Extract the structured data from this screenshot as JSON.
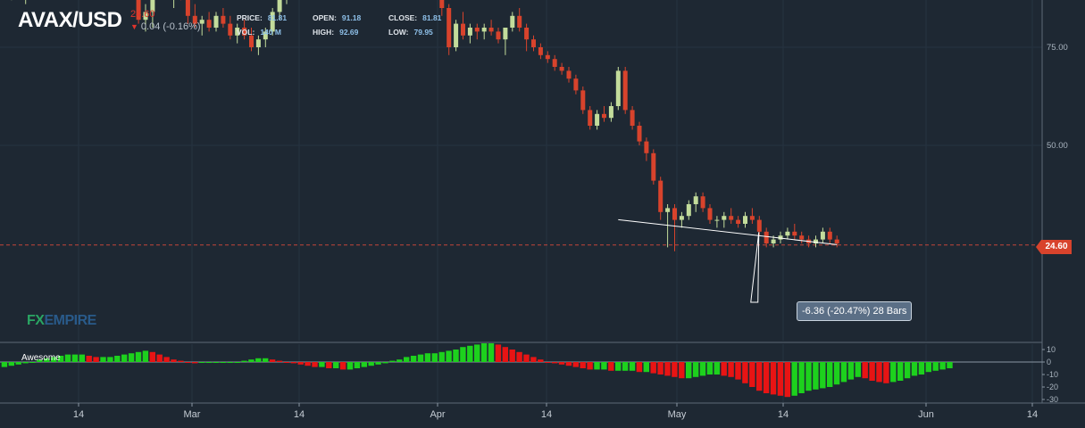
{
  "header": {
    "symbol": "AVAX/USD",
    "last_price": "24.60",
    "change": "0.04 (-0.16%)",
    "stats": [
      {
        "label": "PRICE:",
        "value": "81.81"
      },
      {
        "label": "OPEN:",
        "value": "91.18"
      },
      {
        "label": "CLOSE:",
        "value": "81.81"
      },
      {
        "label": "VOL:",
        "value": "140 M"
      },
      {
        "label": "HIGH:",
        "value": "92.69"
      },
      {
        "label": "LOW:",
        "value": "79.95"
      }
    ]
  },
  "logo": {
    "fx": "FX",
    "empire": "EMPIRE"
  },
  "indicator": {
    "name": "Awesome"
  },
  "price_tag": "24.60",
  "annotation": "-6.36 (-20.47%) 28 Bars",
  "colors": {
    "background": "#1e2833",
    "up": "#c3dc9b",
    "down": "#d8432c",
    "ao_up": "#1dd11d",
    "ao_down": "#e81414"
  },
  "chart_data": [
    {
      "type": "candlestick",
      "y_ticks": [
        "75.00",
        "50.00"
      ],
      "x_ticks": [
        "14",
        "Mar",
        "14",
        "Apr",
        "14",
        "May",
        "14",
        "Jun",
        "14"
      ],
      "current_price": 24.6,
      "candles_ohlc": [
        [
          93,
          96,
          88,
          90
        ],
        [
          90,
          91.5,
          87,
          91
        ],
        [
          91,
          94,
          88,
          89
        ],
        [
          89,
          92,
          86,
          91
        ],
        [
          91,
          94,
          89,
          93
        ],
        [
          93,
          95,
          90,
          92
        ],
        [
          92,
          97,
          91,
          96
        ],
        [
          96,
          99,
          94,
          95
        ],
        [
          95,
          98,
          92,
          97
        ],
        [
          97,
          101,
          95,
          100
        ],
        [
          100,
          102,
          96,
          97
        ],
        [
          97,
          99,
          93,
          98
        ],
        [
          98,
          103,
          97,
          102
        ],
        [
          102,
          104,
          98,
          99
        ],
        [
          99,
          102,
          96,
          101
        ],
        [
          101,
          104,
          98,
          103
        ],
        [
          103,
          106,
          100,
          104
        ],
        [
          104,
          105,
          97,
          98
        ],
        [
          98,
          100,
          89,
          90
        ],
        [
          90,
          91,
          81,
          82
        ],
        [
          82,
          86,
          79,
          84
        ],
        [
          84,
          91,
          80,
          89
        ],
        [
          89,
          96,
          88,
          95
        ],
        [
          95,
          97,
          89,
          90
        ],
        [
          90,
          93,
          85,
          92
        ],
        [
          92,
          95,
          87,
          88
        ],
        [
          88,
          89,
          81,
          83
        ],
        [
          83,
          86,
          80,
          81
        ],
        [
          81,
          83,
          78,
          82
        ],
        [
          82,
          84,
          79,
          80
        ],
        [
          80,
          84,
          79,
          83
        ],
        [
          83,
          85,
          80,
          81
        ],
        [
          81,
          83,
          77,
          78
        ],
        [
          78,
          81,
          76,
          80
        ],
        [
          80,
          82,
          77,
          78
        ],
        [
          78,
          80,
          74,
          75
        ],
        [
          75,
          78,
          73,
          77
        ],
        [
          77,
          80,
          75,
          79
        ],
        [
          79,
          85,
          78,
          84
        ],
        [
          84,
          90,
          82,
          88
        ],
        [
          88,
          94,
          86,
          92
        ],
        [
          92,
          97,
          90,
          95
        ],
        [
          95,
          98,
          92,
          96
        ],
        [
          96,
          99,
          93,
          94
        ],
        [
          94,
          97,
          91,
          92
        ],
        [
          92,
          95,
          89,
          93
        ],
        [
          93,
          96,
          90,
          94
        ],
        [
          94,
          97,
          92,
          96
        ],
        [
          96,
          99,
          94,
          97
        ],
        [
          97,
          101,
          95,
          100
        ],
        [
          100,
          104,
          98,
          102
        ],
        [
          102,
          106,
          99,
          104
        ],
        [
          104,
          108,
          100,
          105
        ],
        [
          105,
          110,
          101,
          106
        ],
        [
          106,
          112,
          102,
          108
        ],
        [
          108,
          114,
          104,
          110
        ],
        [
          110,
          115,
          106,
          112
        ],
        [
          112,
          114,
          106,
          107
        ],
        [
          107,
          109,
          101,
          102
        ],
        [
          102,
          104,
          96,
          97
        ],
        [
          97,
          99,
          91,
          93
        ],
        [
          93,
          94,
          88,
          92
        ],
        [
          92,
          93,
          83,
          85
        ],
        [
          85,
          86,
          73,
          75
        ],
        [
          75,
          82,
          74,
          81
        ],
        [
          81,
          84,
          77,
          78
        ],
        [
          78,
          81,
          76,
          80
        ],
        [
          80,
          81,
          77,
          79
        ],
        [
          79,
          81,
          77,
          80
        ],
        [
          80,
          82,
          78,
          79
        ],
        [
          79,
          80,
          76,
          77
        ],
        [
          77,
          79,
          73,
          80
        ],
        [
          80,
          84,
          79,
          83
        ],
        [
          83,
          85,
          79,
          80
        ],
        [
          80,
          81,
          74,
          77
        ],
        [
          77,
          78,
          74,
          75
        ],
        [
          75,
          76,
          72,
          73
        ],
        [
          73,
          74,
          71,
          72
        ],
        [
          72,
          73,
          69,
          70
        ],
        [
          70,
          71,
          68,
          69
        ],
        [
          69,
          70,
          66,
          67
        ],
        [
          67,
          68,
          63,
          64
        ],
        [
          64,
          65,
          58,
          59
        ],
        [
          59,
          60,
          54,
          55
        ],
        [
          55,
          59,
          54,
          58
        ],
        [
          58,
          60,
          56,
          57
        ],
        [
          57,
          61,
          56,
          60
        ],
        [
          60,
          70,
          59,
          69
        ],
        [
          69,
          70,
          58,
          59
        ],
        [
          59,
          60,
          54,
          55
        ],
        [
          55,
          56,
          50,
          51
        ],
        [
          51,
          52,
          46,
          48
        ],
        [
          48,
          49,
          40,
          41
        ],
        [
          41,
          42,
          31,
          33
        ],
        [
          33,
          35,
          24,
          34
        ],
        [
          34,
          35,
          23,
          31
        ],
        [
          31,
          33,
          29,
          32
        ],
        [
          32,
          36,
          31,
          35
        ],
        [
          35,
          38,
          33,
          37
        ],
        [
          37,
          38,
          33,
          34
        ],
        [
          34,
          35,
          30,
          31
        ],
        [
          31,
          32,
          29,
          31
        ],
        [
          31,
          33,
          29,
          32
        ],
        [
          32,
          34,
          30,
          31
        ],
        [
          31,
          32,
          29,
          30
        ],
        [
          30,
          33,
          29,
          32
        ],
        [
          32,
          34,
          30,
          31
        ],
        [
          31,
          32,
          27,
          28
        ],
        [
          28,
          29,
          24,
          25
        ],
        [
          25,
          27,
          24,
          26
        ],
        [
          26,
          28,
          25,
          27
        ],
        [
          27,
          29,
          26,
          28
        ],
        [
          28,
          30,
          26,
          27
        ],
        [
          27,
          28,
          25,
          26
        ],
        [
          26,
          27,
          24,
          25
        ],
        [
          25,
          27,
          24,
          26
        ],
        [
          26,
          29,
          25,
          28
        ],
        [
          28,
          29,
          25,
          26
        ],
        [
          26,
          27,
          24,
          25
        ]
      ],
      "trendline": {
        "from": 31.06,
        "to": 24.7,
        "change": "-6.36 (-20.47%)",
        "bars": 28
      }
    },
    {
      "type": "bar",
      "name": "Awesome",
      "y_ticks": [
        "10",
        "0",
        "-10",
        "-20",
        "-30"
      ],
      "ylim": [
        -30,
        12
      ],
      "values": [
        -4,
        -3,
        -2,
        -1,
        0,
        2,
        3,
        4,
        5,
        6,
        6,
        6,
        5,
        4,
        4,
        4,
        5,
        6,
        7,
        8,
        9,
        8,
        6,
        4,
        2,
        1,
        0,
        -1,
        0,
        0,
        0,
        0,
        0,
        0,
        1,
        2,
        3,
        3,
        2,
        1,
        0,
        -1,
        -2,
        -3,
        -4,
        -4,
        -5,
        -5,
        -6,
        -6,
        -5,
        -4,
        -3,
        -2,
        -1,
        1,
        2,
        4,
        5,
        6,
        7,
        7,
        8,
        9,
        10,
        12,
        13,
        14,
        15,
        15,
        14,
        12,
        10,
        8,
        6,
        4,
        2,
        0,
        -1,
        -2,
        -3,
        -4,
        -5,
        -6,
        -6,
        -6,
        -7,
        -7,
        -7,
        -7,
        -8,
        -8,
        -9,
        -10,
        -11,
        -12,
        -13,
        -13,
        -12,
        -11,
        -10,
        -10,
        -11,
        -12,
        -14,
        -17,
        -20,
        -23,
        -25,
        -26,
        -27,
        -28,
        -27,
        -25,
        -23,
        -22,
        -21,
        -20,
        -18,
        -16,
        -14,
        -12,
        -13,
        -15,
        -16,
        -17,
        -16,
        -15,
        -13,
        -11,
        -10,
        -8,
        -7,
        -6,
        -5
      ]
    }
  ]
}
